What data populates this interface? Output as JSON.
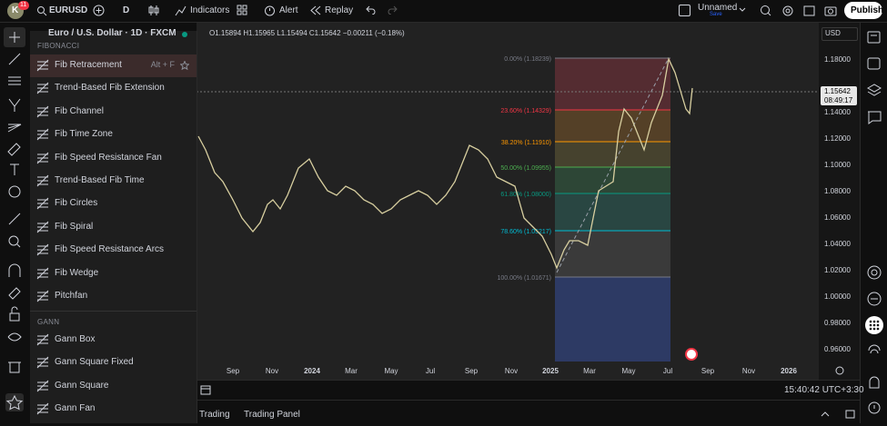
{
  "top_bar": {
    "avatar": "K",
    "badge": "11",
    "symbol": "EURUSD",
    "interval": "D",
    "indicators": "Indicators",
    "alert": "Alert",
    "replay": "Replay",
    "layout_name": "Unnamed",
    "save": "Save",
    "publish": "Publish"
  },
  "legend": {
    "title": "Euro / U.S. Dollar · 1D · FXCM",
    "ohlc": "O1.15894 H1.15965 L1.15494 C1.15642 −0.00211 (−0.18%)"
  },
  "menu": {
    "sections": [
      {
        "title": "FIBONACCI",
        "items": [
          {
            "label": "Fib Retracement",
            "shortcut": "Alt + F"
          },
          {
            "label": "Trend-Based Fib Extension"
          },
          {
            "label": "Fib Channel"
          },
          {
            "label": "Fib Time Zone"
          },
          {
            "label": "Fib Speed Resistance Fan"
          },
          {
            "label": "Trend-Based Fib Time"
          },
          {
            "label": "Fib Circles"
          },
          {
            "label": "Fib Spiral"
          },
          {
            "label": "Fib Speed Resistance Arcs"
          },
          {
            "label": "Fib Wedge"
          },
          {
            "label": "Pitchfan"
          }
        ]
      },
      {
        "title": "GANN",
        "items": [
          {
            "label": "Gann Box"
          },
          {
            "label": "Gann Square Fixed"
          },
          {
            "label": "Gann Square"
          },
          {
            "label": "Gann Fan"
          }
        ]
      }
    ]
  },
  "price_axis": {
    "currency": "USD",
    "labels": [
      "1.18000",
      "1.14000",
      "1.12000",
      "1.10000",
      "1.08000",
      "1.06000",
      "1.04000",
      "1.02000",
      "1.00000",
      "0.98000",
      "0.96000"
    ],
    "last_price": "1.15642",
    "countdown": "08:49:17"
  },
  "time_axis": {
    "labels": [
      "Sep",
      "Nov",
      "2024",
      "Mar",
      "May",
      "Jul",
      "Sep",
      "Nov",
      "2025",
      "Mar",
      "May",
      "Jul",
      "Sep",
      "Nov",
      "2026"
    ]
  },
  "fib_levels": [
    "0.00% (1.18239)",
    "23.60% (1.14329)",
    "38.20% (1.11910)",
    "50.00% (1.09955)",
    "61.80% (1.08000)",
    "78.60% (1.05217)",
    "100.00% (1.01671)"
  ],
  "status": {
    "time": "15:40:42 UTC+3:30"
  },
  "bottom_tabs": [
    "Trading",
    "Trading Panel"
  ]
}
